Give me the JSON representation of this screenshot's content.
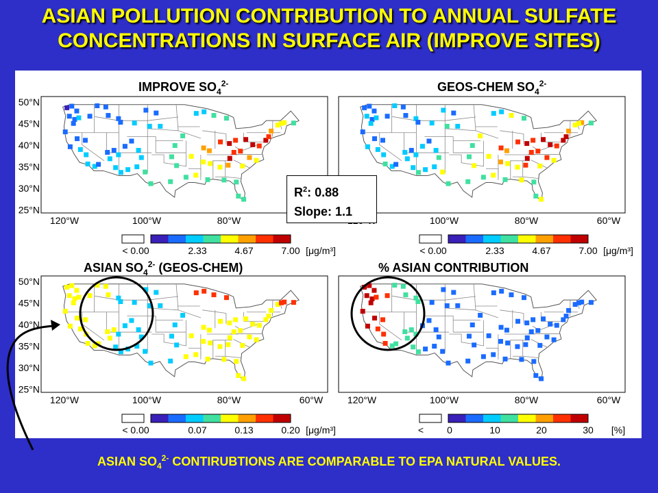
{
  "title": {
    "line1": "ASIAN POLLUTION CONTRIBUTION TO ANNUAL SULFATE",
    "line2": "CONCENTRATIONS IN SURFACE AIR (IMPROVE SITES)"
  },
  "panels": [
    {
      "title": "IMPROVE SO",
      "sub": "4",
      "sup": "2-",
      "suffix": "",
      "cbar_ticks": [
        "< 0.00",
        "2.33",
        "4.67",
        "7.00"
      ],
      "unit": "[μg/m³]"
    },
    {
      "title": "GEOS-CHEM SO",
      "sub": "4",
      "sup": "2-",
      "suffix": "",
      "cbar_ticks": [
        "< 0.00",
        "2.33",
        "4.67",
        "7.00"
      ],
      "unit": "[μg/m³]"
    },
    {
      "title": "ASIAN SO",
      "sub": "4",
      "sup": "2-",
      "suffix": " (GEOS-CHEM)",
      "cbar_ticks": [
        "< 0.00",
        "0.07",
        "0.13",
        "0.20"
      ],
      "unit": "[μg/m³]"
    },
    {
      "title": "% ASIAN CONTRIBUTION",
      "sub": "",
      "sup": "",
      "suffix": "",
      "cbar_ticks": [
        "<",
        "0",
        "10",
        "20",
        "30"
      ],
      "unit": "[%]"
    }
  ],
  "lat_labels": [
    "50°N",
    "45°N",
    "40°N",
    "35°N",
    "30°N",
    "25°N"
  ],
  "lon_labels": [
    "120°W",
    "100°W",
    "80°W",
    "60°W"
  ],
  "stats": {
    "r2_label": "R",
    "r2_sup": "2",
    "r2_value": ": 0.88",
    "slope": "Slope: 1.1"
  },
  "footer": {
    "pre": "ASIAN SO",
    "sub": "4",
    "sup": "2-",
    "post": " CONTIRUBTIONS ARE COMPARABLE TO EPA NATURAL VALUES."
  },
  "colors": {
    "background": "#2e2ec8",
    "title": "#ffff00",
    "colormap": [
      "#3a1fb8",
      "#1a6bff",
      "#00ccff",
      "#40e0a0",
      "#ffff00",
      "#ffa000",
      "#ff3000",
      "#c00000"
    ]
  }
}
